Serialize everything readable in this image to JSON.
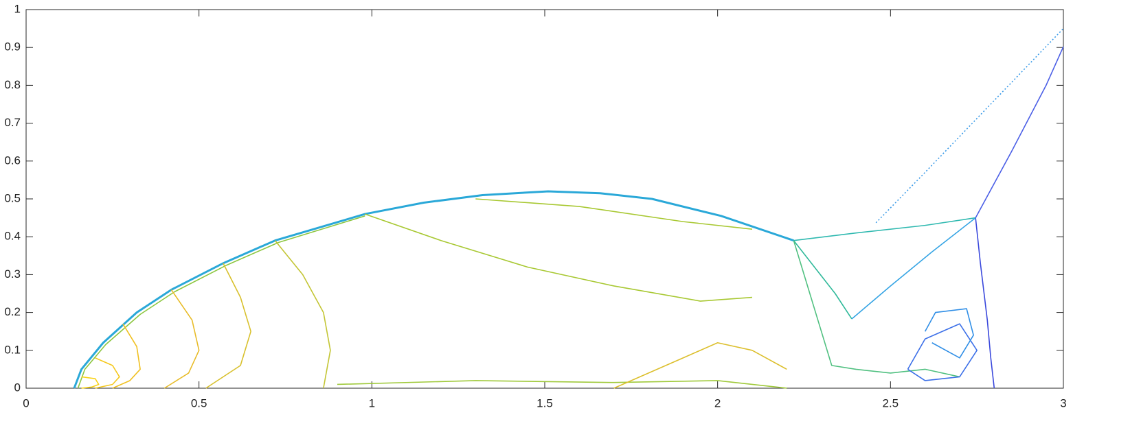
{
  "chart_data": {
    "type": "contour",
    "xlim": [
      0,
      3
    ],
    "ylim": [
      0,
      1
    ],
    "xticks": [
      0,
      0.5,
      1,
      1.5,
      2,
      2.5,
      3
    ],
    "yticks": [
      0,
      0.1,
      0.2,
      0.3,
      0.4,
      0.5,
      0.6,
      0.7,
      0.8,
      0.9,
      1
    ],
    "curves": [
      {
        "color": "#2aa8d8",
        "x": [
          0.139,
          0.16,
          0.223,
          0.32,
          0.42,
          0.57,
          0.72,
          0.98,
          1.15,
          1.32,
          1.51,
          1.66,
          1.81,
          2.01,
          2.22
        ],
        "y": [
          0,
          0.05,
          0.12,
          0.2,
          0.26,
          0.33,
          0.39,
          0.46,
          0.49,
          0.51,
          0.52,
          0.515,
          0.5,
          0.455,
          0.39
        ]
      },
      {
        "color": "#8cc63f",
        "x": [
          0.15,
          0.17,
          0.23,
          0.33,
          0.43,
          0.58,
          0.73,
          0.98
        ],
        "y": [
          0,
          0.05,
          0.115,
          0.195,
          0.255,
          0.325,
          0.385,
          0.455
        ]
      },
      {
        "color": "#2fb9b0",
        "x": [
          2.22,
          2.4,
          2.6,
          2.746
        ],
        "y": [
          0.39,
          0.41,
          0.43,
          0.45
        ]
      },
      {
        "color": "#4a5ee6",
        "x": [
          2.746,
          2.85,
          2.95,
          3
        ],
        "y": [
          0.45,
          0.625,
          0.8,
          0.902
        ]
      },
      {
        "color": "#3a48dc",
        "x": [
          2.746,
          2.76,
          2.78,
          2.79,
          2.8
        ],
        "y": [
          0.45,
          0.33,
          0.18,
          0.08,
          0
        ]
      },
      {
        "color": "#2fb99a",
        "x": [
          2.22,
          2.28,
          2.34,
          2.388
        ],
        "y": [
          0.39,
          0.32,
          0.25,
          0.183
        ]
      },
      {
        "color": "#35a4e4",
        "x": [
          2.388,
          2.5,
          2.62,
          2.746
        ],
        "y": [
          0.183,
          0.27,
          0.36,
          0.45
        ]
      },
      {
        "color": "#3b9be8",
        "x": [
          2.458,
          2.6,
          2.8,
          3
        ],
        "y": [
          0.437,
          0.57,
          0.76,
          0.95
        ]
      },
      {
        "color": "#a8c832",
        "x": [
          0.98,
          1.2,
          1.45,
          1.7,
          1.95,
          2.1
        ],
        "y": [
          0.46,
          0.39,
          0.32,
          0.27,
          0.23,
          0.24
        ]
      },
      {
        "color": "#a8c832",
        "x": [
          1.3,
          1.6,
          1.9,
          2.1
        ],
        "y": [
          0.5,
          0.48,
          0.44,
          0.42
        ]
      },
      {
        "color": "#c3c534",
        "x": [
          0.72,
          0.8,
          0.86,
          0.88,
          0.86
        ],
        "y": [
          0.39,
          0.3,
          0.2,
          0.1,
          0
        ]
      },
      {
        "color": "#d8c02c",
        "x": [
          0.57,
          0.62,
          0.65,
          0.62,
          0.52
        ],
        "y": [
          0.33,
          0.24,
          0.15,
          0.06,
          0
        ]
      },
      {
        "color": "#e8bc2a",
        "x": [
          0.42,
          0.48,
          0.5,
          0.47,
          0.4
        ],
        "y": [
          0.26,
          0.18,
          0.1,
          0.04,
          0
        ]
      },
      {
        "color": "#f0c020",
        "x": [
          0.28,
          0.32,
          0.33,
          0.3,
          0.25
        ],
        "y": [
          0.17,
          0.11,
          0.05,
          0.02,
          0
        ]
      },
      {
        "color": "#f5c81c",
        "x": [
          0.2,
          0.25,
          0.27,
          0.25,
          0.2
        ],
        "y": [
          0.08,
          0.06,
          0.03,
          0.01,
          0
        ]
      },
      {
        "color": "#f9d214",
        "x": [
          0.16,
          0.2,
          0.21,
          0.19,
          0.16
        ],
        "y": [
          0.03,
          0.025,
          0.01,
          0.003,
          0
        ]
      },
      {
        "color": "#9fc93a",
        "x": [
          0.9,
          1.3,
          1.7,
          2.0,
          2.2
        ],
        "y": [
          0.01,
          0.02,
          0.015,
          0.02,
          0.0
        ]
      },
      {
        "color": "#dcbf2c",
        "x": [
          1.7,
          1.9,
          2.0,
          2.1,
          2.2
        ],
        "y": [
          0.0,
          0.08,
          0.12,
          0.1,
          0.05
        ]
      },
      {
        "color": "#50c080",
        "x": [
          2.22,
          2.25,
          2.3,
          2.33,
          2.4,
          2.5,
          2.6,
          2.7
        ],
        "y": [
          0.39,
          0.3,
          0.15,
          0.06,
          0.05,
          0.04,
          0.05,
          0.03
        ]
      },
      {
        "color": "#3b6fe8",
        "x": [
          2.55,
          2.6,
          2.7,
          2.75,
          2.7,
          2.6,
          2.55
        ],
        "y": [
          0.05,
          0.13,
          0.17,
          0.1,
          0.03,
          0.02,
          0.05
        ]
      },
      {
        "color": "#2f8ee6",
        "x": [
          2.6,
          2.63,
          2.72,
          2.74,
          2.7,
          2.62
        ],
        "y": [
          0.15,
          0.2,
          0.21,
          0.14,
          0.08,
          0.12
        ]
      }
    ]
  }
}
